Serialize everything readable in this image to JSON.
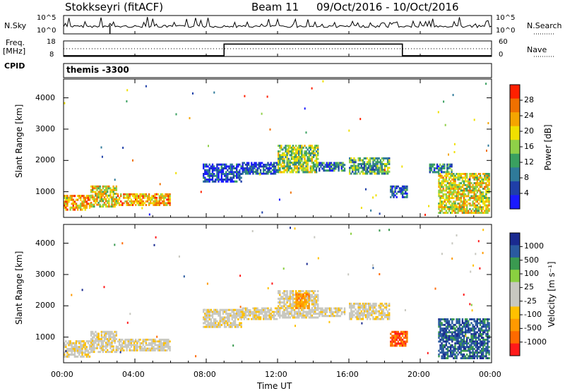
{
  "header": {
    "station": "Stokkseyri (fitACF)",
    "beam": "Beam 11",
    "date_range": "09/Oct/2016 - 10/Oct/2016"
  },
  "panels": {
    "nsky_label": "N.Sky",
    "nsky_ticks": [
      "10^5",
      "10^0"
    ],
    "nsearch_label": "N.Search",
    "nsearch_ticks": [
      "10^5",
      "10^0"
    ],
    "freq_label": "Freq.",
    "freq_unit": "[MHz]",
    "freq_ticks": [
      "18",
      "8"
    ],
    "nave_label": "Nave",
    "nave_ticks": [
      "60",
      "0"
    ],
    "cpid_label": "CPID",
    "cpid_value": "themis -3300"
  },
  "colors": {
    "power": [
      "#1a1aff",
      "#1f3fa8",
      "#2f7a9a",
      "#3aa060",
      "#8fd048",
      "#f0e000",
      "#f5a500",
      "#f07000",
      "#ff2000"
    ],
    "velocity": [
      "#ff1a1a",
      "#ff6a00",
      "#ff9a00",
      "#ffc000",
      "#c8c8c0",
      "#c8c8c0",
      "#8ad040",
      "#3a9a50",
      "#2a5aa0",
      "#1a2a90"
    ]
  },
  "chart_data": [
    {
      "type": "heatmap",
      "name": "power",
      "xlabel": "",
      "ylabel": "Slant Range [km]",
      "x_ticks": [
        "00:00",
        "04:00",
        "08:00",
        "12:00",
        "16:00",
        "20:00",
        "00:00"
      ],
      "y_ticks": [
        1000,
        2000,
        3000,
        4000
      ],
      "ylim": [
        180,
        4600
      ],
      "colorbar": {
        "label": "Power [dB]",
        "ticks": [
          "28",
          "24",
          "20",
          "16",
          "12",
          "8",
          "4"
        ]
      },
      "regions": [
        {
          "t0": 0.0,
          "t1": 1.5,
          "r0": 400,
          "r1": 900,
          "level": 6
        },
        {
          "t0": 1.5,
          "t1": 3.0,
          "r0": 500,
          "r1": 1200,
          "level": 5
        },
        {
          "t0": 3.0,
          "t1": 6.0,
          "r0": 550,
          "r1": 950,
          "level": 6
        },
        {
          "t0": 7.8,
          "t1": 10.0,
          "r0": 1300,
          "r1": 1900,
          "level": 1
        },
        {
          "t0": 10.0,
          "t1": 12.0,
          "r0": 1550,
          "r1": 1950,
          "level": 1
        },
        {
          "t0": 12.0,
          "t1": 14.3,
          "r0": 1600,
          "r1": 2500,
          "level": 4
        },
        {
          "t0": 14.3,
          "t1": 15.8,
          "r0": 1650,
          "r1": 1950,
          "level": 2
        },
        {
          "t0": 16.0,
          "t1": 18.3,
          "r0": 1550,
          "r1": 2100,
          "level": 3
        },
        {
          "t0": 18.3,
          "t1": 19.3,
          "r0": 800,
          "r1": 1200,
          "level": 2
        },
        {
          "t0": 20.5,
          "t1": 21.8,
          "r0": 1600,
          "r1": 1900,
          "level": 2
        },
        {
          "t0": 21.0,
          "t1": 23.9,
          "r0": 300,
          "r1": 1600,
          "level": 5
        }
      ]
    },
    {
      "type": "heatmap",
      "name": "velocity",
      "xlabel": "Time UT",
      "ylabel": "Slant Range [km]",
      "x_ticks": [
        "00:00",
        "04:00",
        "08:00",
        "12:00",
        "16:00",
        "20:00",
        "00:00"
      ],
      "y_ticks": [
        1000,
        2000,
        3000,
        4000
      ],
      "ylim": [
        180,
        4600
      ],
      "colorbar": {
        "label": "Velocity [m s⁻¹]",
        "ticks": [
          "1000",
          "500",
          "100",
          "25",
          "-25",
          "-100",
          "-500",
          "-1000"
        ]
      },
      "regions": [
        {
          "t0": 0.0,
          "t1": 1.5,
          "r0": 350,
          "r1": 900,
          "level": 4
        },
        {
          "t0": 1.5,
          "t1": 3.0,
          "r0": 500,
          "r1": 1200,
          "level": 4
        },
        {
          "t0": 3.0,
          "t1": 6.0,
          "r0": 550,
          "r1": 950,
          "level": 4
        },
        {
          "t0": 7.8,
          "t1": 10.0,
          "r0": 1300,
          "r1": 1900,
          "level": 4
        },
        {
          "t0": 10.0,
          "t1": 12.0,
          "r0": 1550,
          "r1": 1950,
          "level": 4
        },
        {
          "t0": 12.0,
          "t1": 14.3,
          "r0": 1600,
          "r1": 2500,
          "level": 4
        },
        {
          "t0": 13.0,
          "t1": 13.8,
          "r0": 1900,
          "r1": 2400,
          "level": 2
        },
        {
          "t0": 14.3,
          "t1": 15.8,
          "r0": 1650,
          "r1": 1950,
          "level": 4
        },
        {
          "t0": 16.0,
          "t1": 18.3,
          "r0": 1550,
          "r1": 2100,
          "level": 4
        },
        {
          "t0": 18.3,
          "t1": 19.3,
          "r0": 700,
          "r1": 1200,
          "level": 1
        },
        {
          "t0": 21.0,
          "t1": 23.9,
          "r0": 300,
          "r1": 1600,
          "level": 8
        }
      ]
    }
  ],
  "nave": {
    "segments": [
      {
        "t0": 0.0,
        "t1": 9.0,
        "value": 0.05
      },
      {
        "t0": 9.0,
        "t1": 19.0,
        "value": 0.8
      },
      {
        "t0": 19.0,
        "t1": 24.0,
        "value": 0.05
      }
    ]
  }
}
